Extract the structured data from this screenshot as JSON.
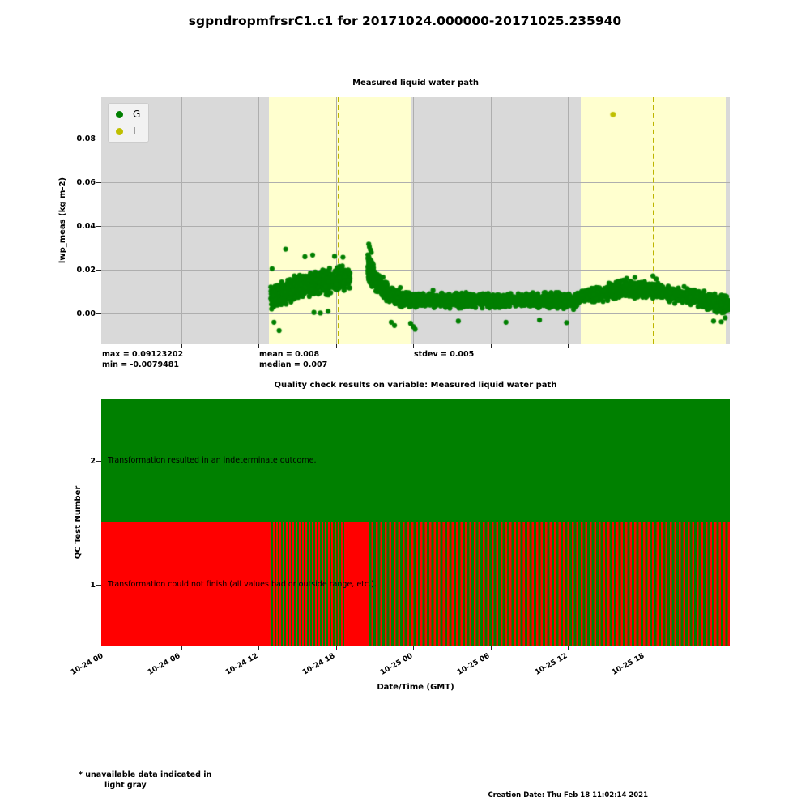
{
  "page": {
    "title": "sgpndropmfrsrC1.c1 for 20171024.000000-20171025.235940",
    "footnote_line1": "* unavailable data indicated in",
    "footnote_line2": "light gray",
    "creation_date": "Creation Date: Thu Feb 18 11:02:14 2021"
  },
  "colors": {
    "good_green": "#007f00",
    "indeterminate_yellow": "#bfbf00",
    "qc_pass_green": "#008000",
    "qc_fail_red": "#ff0000",
    "day_band_yellow": "#ffffcf",
    "night_band_gray": "#d9d9d9",
    "grid_gray": "#aeaeae",
    "dashed_line_olive": "#bdb500"
  },
  "chart_data": [
    {
      "type": "scatter",
      "title": "Measured liquid water path",
      "ylabel": "lwp_meas (kg m-2)",
      "xlim_hours": [
        -0.2,
        48.56
      ],
      "ylim": [
        -0.0141,
        0.0991
      ],
      "yticks": [
        0.0,
        0.02,
        0.04,
        0.06,
        0.08
      ],
      "ytick_labels": [
        "0.00",
        "0.02",
        "0.04",
        "0.06",
        "0.08"
      ],
      "xticks_hours": [
        0,
        6,
        12,
        18,
        24,
        30,
        36,
        42
      ],
      "yellow_bands_hours": [
        [
          12.81,
          23.87
        ],
        [
          37.0,
          48.24
        ]
      ],
      "dashed_lines_hours": [
        18.22,
        42.65
      ],
      "legend": [
        {
          "label": "G",
          "color": "#007f00"
        },
        {
          "label": "I",
          "color": "#bfbf00"
        }
      ],
      "stats": {
        "max": "max = 0.09123202",
        "min": "min = -0.0079481",
        "mean": "mean = 0.008",
        "median": "median = 0.007",
        "stdev": "stdev = 0.005"
      },
      "scatter_segments": [
        [
          12.95,
          14.5,
          200,
          0.007,
          0.011,
          0.0065
        ],
        [
          14.5,
          17.0,
          300,
          0.011,
          0.015,
          0.007
        ],
        [
          17.0,
          19.1,
          290,
          0.0145,
          0.016,
          0.0075
        ],
        [
          20.48,
          20.95,
          90,
          0.021,
          0.017,
          0.0085
        ],
        [
          20.95,
          22.0,
          150,
          0.015,
          0.01,
          0.006
        ],
        [
          22.0,
          23.2,
          140,
          0.009,
          0.007,
          0.005
        ],
        [
          23.2,
          30.0,
          560,
          0.0065,
          0.006,
          0.0045
        ],
        [
          30.0,
          36.8,
          560,
          0.006,
          0.006,
          0.0045
        ],
        [
          36.8,
          40.3,
          300,
          0.007,
          0.0115,
          0.0048
        ],
        [
          40.3,
          43.3,
          260,
          0.0115,
          0.01,
          0.0055
        ],
        [
          43.3,
          46.3,
          250,
          0.009,
          0.0075,
          0.0048
        ],
        [
          46.3,
          48.45,
          200,
          0.0065,
          0.0035,
          0.0055
        ]
      ],
      "outlier_points": [
        [
          13.05,
          0.0205
        ],
        [
          13.6,
          -0.0078
        ],
        [
          13.2,
          -0.004
        ],
        [
          14.1,
          0.0295
        ],
        [
          15.6,
          0.026
        ],
        [
          16.2,
          0.0268
        ],
        [
          17.9,
          0.0262
        ],
        [
          18.55,
          0.0258
        ],
        [
          16.3,
          0.0005
        ],
        [
          16.8,
          0.0002
        ],
        [
          17.4,
          0.001
        ],
        [
          20.55,
          0.0318
        ],
        [
          20.6,
          0.0305
        ],
        [
          20.68,
          0.0292
        ],
        [
          20.75,
          0.028
        ],
        [
          22.3,
          -0.004
        ],
        [
          22.55,
          -0.0055
        ],
        [
          23.8,
          -0.0045
        ],
        [
          24.0,
          -0.006
        ],
        [
          24.15,
          -0.0072
        ],
        [
          27.5,
          -0.0035
        ],
        [
          31.2,
          -0.004
        ],
        [
          33.8,
          -0.003
        ],
        [
          35.9,
          -0.0042
        ],
        [
          41.2,
          0.0165
        ],
        [
          42.6,
          0.0172
        ],
        [
          42.85,
          0.0158
        ],
        [
          47.3,
          -0.0035
        ],
        [
          47.9,
          -0.0038
        ],
        [
          48.2,
          -0.002
        ]
      ],
      "indeterminate_points": [
        [
          39.5,
          0.0912
        ]
      ]
    },
    {
      "type": "qc-bars",
      "title": "Quality check results on variable: Measured liquid water path",
      "ylabel": "QC Test Number",
      "xlabel": "Date/Time (GMT)",
      "yticks": [
        "2",
        "1"
      ],
      "xticks_hours": [
        0,
        6,
        12,
        18,
        24,
        30,
        36,
        42
      ],
      "xtick_labels": [
        "10-24 00",
        "10-24 06",
        "10-24 12",
        "10-24 18",
        "10-25 00",
        "10-25 06",
        "10-25 12",
        "10-25 18"
      ],
      "rows": [
        {
          "test_number": "2",
          "label": "Transformation resulted in an indeterminate outcome.",
          "segments": [
            {
              "t0": -0.2,
              "t1": 48.56,
              "state": "pass"
            }
          ]
        },
        {
          "test_number": "1",
          "label": "Transformation could not finish (all values bad or outside range, etc.).",
          "segments": [
            {
              "t0": -0.2,
              "t1": 12.88,
              "state": "fail"
            },
            {
              "t0": 12.88,
              "t1": 18.72,
              "state": "mixed-dense"
            },
            {
              "t0": 18.72,
              "t1": 20.42,
              "state": "fail"
            },
            {
              "t0": 20.42,
              "t1": 48.56,
              "state": "mixed"
            }
          ]
        }
      ]
    }
  ]
}
